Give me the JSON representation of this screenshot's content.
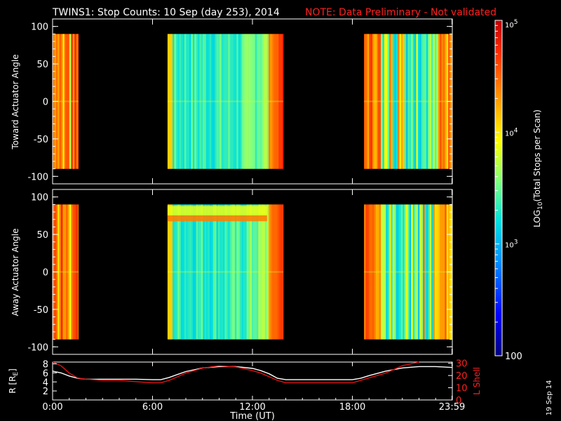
{
  "title": "TWINS1: Stop Counts: 10 Sep (day 253), 2014",
  "note": "NOTE: Data Preliminary - Not validated",
  "stamp": "19 Sep 14",
  "colors": {
    "background": "#000000",
    "axes": "#ffffff",
    "ephem_l": "#e01010",
    "ephem_r": "#ffffff",
    "note": "#ff2020"
  },
  "chart_data": [
    {
      "id": "toward",
      "type": "heatmap",
      "ylabel": "Toward Actuator Angle",
      "ylim": [
        -110,
        110
      ],
      "yticks": [
        100,
        50,
        0,
        -50,
        -100
      ],
      "xlim": [
        0,
        24
      ],
      "data_y_range": [
        -90,
        90
      ],
      "segments": [
        {
          "start_hr": -0.1,
          "end_hr": 1.55,
          "profile": "hot"
        },
        {
          "start_hr": 6.9,
          "end_hr": 13.85,
          "profile": "cool"
        },
        {
          "start_hr": 18.7,
          "end_hr": 24.0,
          "profile": "mixed"
        }
      ]
    },
    {
      "id": "away",
      "type": "heatmap",
      "ylabel": "Away Actuator Angle",
      "ylim": [
        -110,
        110
      ],
      "yticks": [
        100,
        50,
        0,
        -50,
        -100
      ],
      "xlim": [
        0,
        24
      ],
      "data_y_range": [
        -90,
        90
      ],
      "segments": [
        {
          "start_hr": -0.1,
          "end_hr": 1.55,
          "profile": "hot"
        },
        {
          "start_hr": 6.9,
          "end_hr": 13.85,
          "profile": "cool_band"
        },
        {
          "start_hr": 18.7,
          "end_hr": 24.0,
          "profile": "mixed"
        }
      ]
    },
    {
      "id": "ephemeris",
      "type": "line",
      "xlabel": "Time (UT)",
      "xticks": [
        {
          "hr": 0,
          "label": "0:00"
        },
        {
          "hr": 6,
          "label": "6:00"
        },
        {
          "hr": 12,
          "label": "12:00"
        },
        {
          "hr": 18,
          "label": "18:00"
        },
        {
          "hr": 23.98,
          "label": "23:59"
        }
      ],
      "ylabel_left": "R [R",
      "ylabel_left_sub": "E",
      "ylabel_left_end": "]",
      "yticks_left": [
        2,
        4,
        6,
        8
      ],
      "ylim_left": [
        0,
        8.4
      ],
      "ylabel_right": "L Shell",
      "yticks_right": [
        0,
        10,
        20,
        30
      ],
      "ylim_right": [
        0,
        31
      ],
      "series": [
        {
          "axis": "left",
          "color": "#ffffff",
          "x": [
            0,
            0.5,
            1,
            1.5,
            2,
            3,
            4,
            5,
            6,
            6.5,
            7,
            8,
            9,
            10,
            11,
            12,
            12.5,
            13,
            13.5,
            14,
            15,
            16,
            17,
            18,
            18.5,
            19,
            20,
            21,
            22,
            23,
            24
          ],
          "y": [
            6.4,
            6.0,
            5.3,
            4.8,
            4.6,
            4.6,
            4.6,
            4.6,
            4.5,
            4.5,
            5.0,
            6.3,
            7.1,
            7.4,
            7.4,
            7.0,
            6.5,
            5.8,
            4.8,
            4.5,
            4.5,
            4.5,
            4.5,
            4.5,
            4.8,
            5.4,
            6.4,
            7.1,
            7.4,
            7.4,
            7.2
          ]
        },
        {
          "axis": "right",
          "color": "#e01010",
          "x": [
            0,
            0.5,
            1,
            1.5,
            2,
            3,
            4,
            5,
            6,
            6.5,
            7,
            8,
            9,
            10,
            11,
            12,
            12.5,
            13,
            13.5,
            14,
            15,
            16,
            17,
            18,
            18.5,
            19,
            20,
            21,
            22
          ],
          "y": [
            31,
            28,
            22,
            18,
            17,
            16,
            16,
            15,
            14,
            14,
            16,
            22,
            26,
            28,
            27,
            24,
            22,
            19,
            16,
            14,
            14,
            14,
            14,
            14,
            16,
            18,
            22,
            28,
            33
          ]
        }
      ]
    },
    {
      "id": "colorbar",
      "type": "colorbar",
      "label_pre": "LOG",
      "label_sub": "10",
      "label_post": "(Total Stops per Scan)",
      "range": [
        100,
        100000
      ],
      "ticks": [
        {
          "value": 100,
          "label": "100"
        },
        {
          "value": 1000,
          "base": "10",
          "exp": "3"
        },
        {
          "value": 10000,
          "base": "10",
          "exp": "4"
        },
        {
          "value": 100000,
          "base": "10",
          "exp": "5"
        }
      ]
    }
  ]
}
